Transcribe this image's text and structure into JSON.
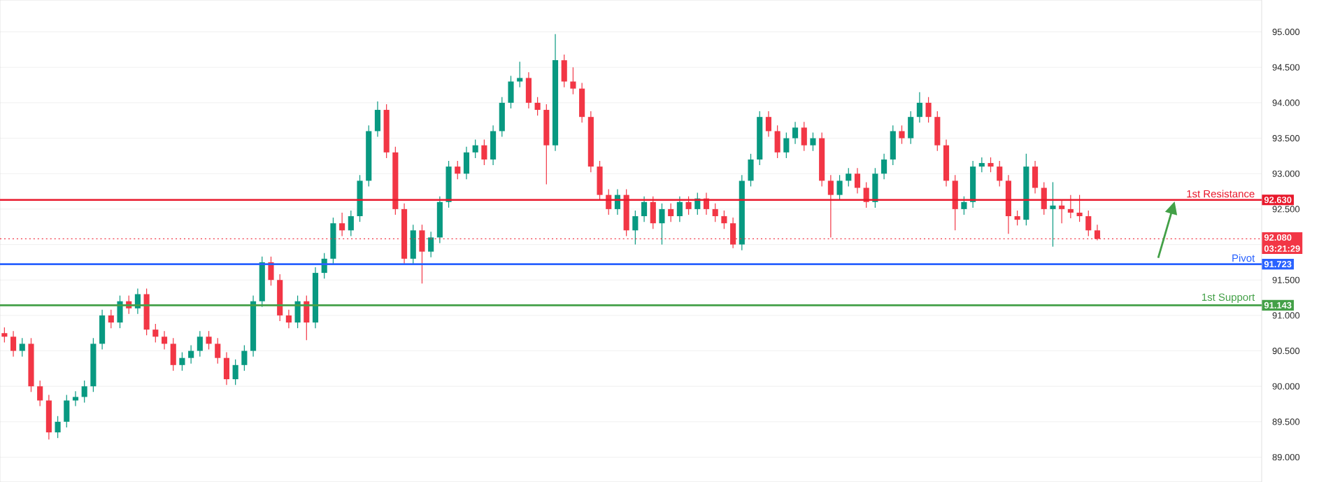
{
  "chart_data": {
    "type": "candlestick",
    "categories": [
      null,
      null,
      null,
      null,
      null,
      null,
      null,
      null,
      null,
      null,
      null,
      null,
      null,
      null,
      null,
      null,
      null,
      null,
      null,
      null,
      null,
      null,
      null,
      null,
      null,
      null,
      null,
      null,
      null,
      null,
      null,
      null,
      null,
      null,
      null,
      null,
      null,
      null,
      null,
      null,
      null,
      null,
      null,
      null,
      null,
      null,
      null,
      null,
      null,
      null,
      null,
      null,
      null,
      null,
      null,
      null,
      null,
      null,
      null,
      null,
      null,
      null,
      null,
      null,
      null,
      null,
      null,
      null,
      null,
      null,
      null,
      null,
      null,
      null,
      null,
      null,
      null,
      null,
      null,
      null,
      null,
      null,
      null,
      null,
      null,
      null,
      null,
      null,
      null,
      null,
      null,
      null,
      null,
      null,
      null,
      null,
      null,
      null,
      null,
      null,
      null,
      null,
      null,
      null,
      null,
      null,
      null,
      null,
      null,
      null,
      null,
      null,
      null,
      null,
      null,
      null,
      null,
      null,
      null,
      null,
      null,
      null,
      null,
      null,
      null,
      null,
      null,
      null,
      null,
      null,
      null,
      null,
      null,
      null,
      null,
      null,
      null,
      null,
      null,
      null,
      null,
      null
    ],
    "ohlc": [
      [
        90.75,
        90.83,
        90.62,
        90.7
      ],
      [
        90.7,
        90.78,
        90.42,
        90.5
      ],
      [
        90.5,
        90.68,
        90.42,
        90.6
      ],
      [
        90.6,
        90.68,
        89.92,
        90.0
      ],
      [
        90.0,
        90.08,
        89.72,
        89.8
      ],
      [
        89.8,
        89.88,
        89.25,
        89.35
      ],
      [
        89.35,
        89.58,
        89.27,
        89.5
      ],
      [
        89.5,
        89.88,
        89.42,
        89.8
      ],
      [
        89.8,
        89.93,
        89.72,
        89.85
      ],
      [
        89.85,
        90.08,
        89.77,
        90.0
      ],
      [
        90.0,
        90.68,
        89.92,
        90.6
      ],
      [
        90.6,
        91.08,
        90.52,
        91.0
      ],
      [
        91.0,
        91.08,
        90.82,
        90.9
      ],
      [
        90.9,
        91.28,
        90.82,
        91.2
      ],
      [
        91.2,
        91.28,
        91.02,
        91.1
      ],
      [
        91.1,
        91.38,
        91.02,
        91.3
      ],
      [
        91.3,
        91.38,
        90.72,
        90.8
      ],
      [
        90.8,
        90.88,
        90.62,
        90.7
      ],
      [
        90.7,
        90.78,
        90.52,
        90.6
      ],
      [
        90.6,
        90.68,
        90.22,
        90.3
      ],
      [
        90.3,
        90.48,
        90.22,
        90.4
      ],
      [
        90.4,
        90.58,
        90.32,
        90.5
      ],
      [
        90.5,
        90.78,
        90.42,
        90.7
      ],
      [
        90.7,
        90.78,
        90.52,
        90.6
      ],
      [
        90.6,
        90.68,
        90.32,
        90.4
      ],
      [
        90.4,
        90.48,
        90.02,
        90.1
      ],
      [
        90.1,
        90.38,
        90.02,
        90.3
      ],
      [
        90.3,
        90.58,
        90.22,
        90.5
      ],
      [
        90.5,
        91.28,
        90.42,
        91.2
      ],
      [
        91.2,
        91.83,
        91.12,
        91.75
      ],
      [
        91.75,
        91.83,
        91.42,
        91.5
      ],
      [
        91.5,
        91.58,
        90.92,
        91.0
      ],
      [
        91.0,
        91.08,
        90.82,
        90.9
      ],
      [
        90.9,
        91.28,
        90.82,
        91.2
      ],
      [
        91.2,
        91.28,
        90.65,
        90.9
      ],
      [
        90.9,
        91.68,
        90.82,
        91.6
      ],
      [
        91.6,
        91.88,
        91.52,
        91.8
      ],
      [
        91.8,
        92.38,
        91.72,
        92.3
      ],
      [
        92.3,
        92.45,
        92.12,
        92.2
      ],
      [
        92.2,
        92.48,
        92.12,
        92.4
      ],
      [
        92.4,
        92.98,
        92.32,
        92.9
      ],
      [
        92.9,
        93.68,
        92.82,
        93.6
      ],
      [
        93.6,
        94.02,
        93.52,
        93.9
      ],
      [
        93.9,
        93.98,
        93.22,
        93.3
      ],
      [
        93.3,
        93.38,
        92.42,
        92.5
      ],
      [
        92.5,
        92.58,
        91.72,
        91.8
      ],
      [
        91.8,
        92.28,
        91.72,
        92.2
      ],
      [
        92.2,
        92.28,
        91.45,
        91.9
      ],
      [
        91.9,
        92.18,
        91.82,
        92.1
      ],
      [
        92.1,
        92.68,
        92.02,
        92.6
      ],
      [
        92.6,
        93.18,
        92.52,
        93.1
      ],
      [
        93.1,
        93.18,
        92.92,
        93.0
      ],
      [
        93.0,
        93.38,
        92.92,
        93.3
      ],
      [
        93.3,
        93.48,
        93.22,
        93.4
      ],
      [
        93.4,
        93.48,
        93.12,
        93.2
      ],
      [
        93.2,
        93.68,
        93.12,
        93.6
      ],
      [
        93.6,
        94.08,
        93.52,
        94.0
      ],
      [
        94.0,
        94.38,
        93.92,
        94.3
      ],
      [
        94.3,
        94.58,
        94.22,
        94.35
      ],
      [
        94.35,
        94.43,
        93.92,
        94.0
      ],
      [
        94.0,
        94.08,
        93.82,
        93.9
      ],
      [
        93.9,
        93.98,
        92.85,
        93.4
      ],
      [
        93.4,
        94.97,
        93.32,
        94.6
      ],
      [
        94.6,
        94.68,
        94.22,
        94.3
      ],
      [
        94.3,
        94.5,
        94.12,
        94.2
      ],
      [
        94.2,
        94.28,
        93.72,
        93.8
      ],
      [
        93.8,
        93.88,
        93.02,
        93.1
      ],
      [
        93.1,
        93.18,
        92.62,
        92.7
      ],
      [
        92.7,
        92.78,
        92.42,
        92.5
      ],
      [
        92.5,
        92.78,
        92.42,
        92.7
      ],
      [
        92.7,
        92.78,
        92.12,
        92.2
      ],
      [
        92.2,
        92.48,
        92.0,
        92.4
      ],
      [
        92.4,
        92.68,
        92.32,
        92.6
      ],
      [
        92.6,
        92.68,
        92.22,
        92.3
      ],
      [
        92.3,
        92.58,
        92.0,
        92.5
      ],
      [
        92.5,
        92.58,
        92.32,
        92.4
      ],
      [
        92.4,
        92.68,
        92.32,
        92.6
      ],
      [
        92.6,
        92.68,
        92.42,
        92.5
      ],
      [
        92.5,
        92.73,
        92.42,
        92.65
      ],
      [
        92.65,
        92.73,
        92.42,
        92.5
      ],
      [
        92.5,
        92.58,
        92.32,
        92.4
      ],
      [
        92.4,
        92.48,
        92.22,
        92.3
      ],
      [
        92.3,
        92.38,
        91.95,
        92.0
      ],
      [
        92.0,
        92.98,
        91.92,
        92.9
      ],
      [
        92.9,
        93.28,
        92.82,
        93.2
      ],
      [
        93.2,
        93.88,
        93.12,
        93.8
      ],
      [
        93.8,
        93.88,
        93.52,
        93.6
      ],
      [
        93.6,
        93.68,
        93.22,
        93.3
      ],
      [
        93.3,
        93.58,
        93.22,
        93.5
      ],
      [
        93.5,
        93.73,
        93.42,
        93.65
      ],
      [
        93.65,
        93.73,
        93.32,
        93.4
      ],
      [
        93.4,
        93.58,
        93.32,
        93.5
      ],
      [
        93.5,
        93.58,
        92.82,
        92.9
      ],
      [
        92.9,
        92.98,
        92.1,
        92.7
      ],
      [
        92.7,
        92.98,
        92.62,
        92.9
      ],
      [
        92.9,
        93.08,
        92.82,
        93.0
      ],
      [
        93.0,
        93.08,
        92.72,
        92.8
      ],
      [
        92.8,
        92.88,
        92.52,
        92.6
      ],
      [
        92.6,
        93.08,
        92.52,
        93.0
      ],
      [
        93.0,
        93.28,
        92.92,
        93.2
      ],
      [
        93.2,
        93.68,
        93.12,
        93.6
      ],
      [
        93.6,
        93.68,
        93.42,
        93.5
      ],
      [
        93.5,
        93.88,
        93.42,
        93.8
      ],
      [
        93.8,
        94.15,
        93.72,
        94.0
      ],
      [
        94.0,
        94.08,
        93.72,
        93.8
      ],
      [
        93.8,
        93.88,
        93.32,
        93.4
      ],
      [
        93.4,
        93.48,
        92.82,
        92.9
      ],
      [
        92.9,
        92.98,
        92.2,
        92.5
      ],
      [
        92.5,
        92.68,
        92.42,
        92.6
      ],
      [
        92.6,
        93.18,
        92.52,
        93.1
      ],
      [
        93.1,
        93.23,
        93.02,
        93.15
      ],
      [
        93.15,
        93.23,
        93.02,
        93.1
      ],
      [
        93.1,
        93.18,
        92.82,
        92.9
      ],
      [
        92.9,
        92.98,
        92.15,
        92.4
      ],
      [
        92.4,
        92.48,
        92.27,
        92.35
      ],
      [
        92.35,
        93.28,
        92.27,
        93.1
      ],
      [
        93.1,
        93.18,
        92.72,
        92.8
      ],
      [
        92.8,
        92.88,
        92.42,
        92.5
      ],
      [
        92.5,
        92.88,
        91.97,
        92.55
      ],
      [
        92.55,
        92.63,
        92.3,
        92.5
      ],
      [
        92.5,
        92.7,
        92.37,
        92.45
      ],
      [
        92.45,
        92.7,
        92.32,
        92.4
      ],
      [
        92.4,
        92.48,
        92.12,
        92.2
      ],
      [
        92.2,
        92.28,
        92.06,
        92.08
      ],
      null,
      null,
      null,
      null,
      null,
      null,
      null,
      null,
      null,
      null,
      null,
      null,
      null,
      null,
      null,
      null,
      null,
      null
    ],
    "colors": [
      "#f23645",
      "#f23645",
      "#089981",
      "#f23645",
      "#f23645",
      "#f23645",
      "#089981",
      "#089981",
      "#089981",
      "#089981",
      "#089981",
      "#089981",
      "#f23645",
      "#089981",
      "#f23645",
      "#089981",
      "#f23645",
      "#f23645",
      "#f23645",
      "#f23645",
      "#089981",
      "#089981",
      "#089981",
      "#f23645",
      "#f23645",
      "#f23645",
      "#089981",
      "#089981",
      "#089981",
      "#089981",
      "#f23645",
      "#f23645",
      "#f23645",
      "#089981",
      "#f23645",
      "#089981",
      "#089981",
      "#089981",
      "#f23645",
      "#089981",
      "#089981",
      "#089981",
      "#089981",
      "#f23645",
      "#f23645",
      "#f23645",
      "#089981",
      "#f23645",
      "#089981",
      "#089981",
      "#089981",
      "#f23645",
      "#089981",
      "#089981",
      "#f23645",
      "#089981",
      "#089981",
      "#089981",
      "#089981",
      "#f23645",
      "#f23645",
      "#f23645",
      "#089981",
      "#f23645",
      "#f23645",
      "#f23645",
      "#f23645",
      "#f23645",
      "#f23645",
      "#089981",
      "#f23645",
      "#089981",
      "#089981",
      "#f23645",
      "#089981",
      "#f23645",
      "#089981",
      "#f23645",
      "#089981",
      "#f23645",
      "#f23645",
      "#f23645",
      "#f23645",
      "#089981",
      "#089981",
      "#089981",
      "#f23645",
      "#f23645",
      "#089981",
      "#089981",
      "#f23645",
      "#089981",
      "#f23645",
      "#f23645",
      "#089981",
      "#089981",
      "#f23645",
      "#f23645",
      "#089981",
      "#089981",
      "#089981",
      "#f23645",
      "#089981",
      "#089981",
      "#f23645",
      "#f23645",
      "#f23645",
      "#f23645",
      "#089981",
      "#089981",
      "#089981",
      "#f23645",
      "#f23645",
      "#f23645",
      "#f23645",
      "#089981",
      "#f23645",
      "#f23645",
      "#089981",
      "#f23645",
      "#f23645",
      "#f23645",
      "#f23645",
      "#f23645",
      null,
      null,
      null,
      null,
      null,
      null,
      null,
      null,
      null,
      null,
      null,
      null,
      null,
      null,
      null,
      null,
      null,
      null
    ],
    "ylim": [
      88.65,
      95.45
    ],
    "yticks": [
      {
        "value": 89,
        "label": "89.000"
      },
      {
        "value": 89.5,
        "label": "89.500"
      },
      {
        "value": 90,
        "label": "90.000"
      },
      {
        "value": 90.5,
        "label": "90.500"
      },
      {
        "value": 91,
        "label": "91.000"
      },
      {
        "value": 91.5,
        "label": "91.500"
      },
      {
        "value": 92,
        "label": null
      },
      {
        "value": 92.5,
        "label": "92.500"
      },
      {
        "value": 93,
        "label": "93.000"
      },
      {
        "value": 93.5,
        "label": "93.500"
      },
      {
        "value": 94,
        "label": "94.000"
      },
      {
        "value": 94.5,
        "label": "94.500"
      },
      {
        "value": 95,
        "label": "95.000"
      }
    ],
    "grid": "y",
    "tick_labels": "y",
    "ref_lines": [
      {
        "axis": "y",
        "value": 92.63,
        "label": "1st Resistance",
        "color": "#e8192c"
      },
      {
        "axis": "y",
        "value": 91.723,
        "label": "Pivot",
        "color": "#2962ff"
      },
      {
        "axis": "y",
        "value": 91.143,
        "label": "1st Support",
        "color": "#43a047"
      },
      {
        "axis": "y",
        "value": 92.08,
        "color": "#f23645",
        "line_style": "dotted"
      }
    ],
    "annotations": [
      "92.630",
      "91.723",
      "91.143",
      "92.080",
      "03:21:29"
    ]
  }
}
